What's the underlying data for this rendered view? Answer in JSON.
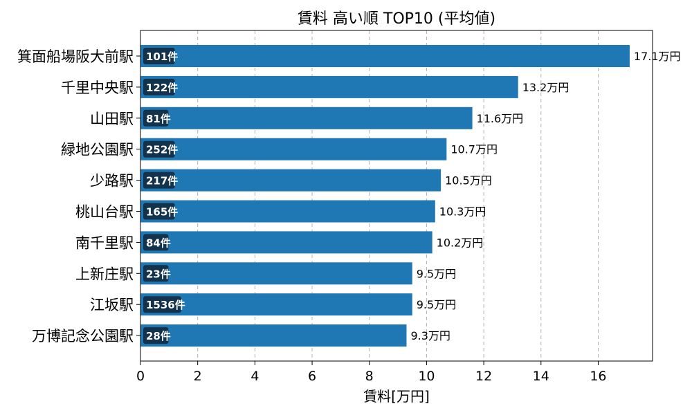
{
  "chart_data": {
    "type": "bar",
    "orientation": "horizontal",
    "title": "賃料 高い順 TOP10 (平均値)",
    "xlabel": "賃料[万円]",
    "ylabel": "",
    "xlim": [
      0,
      17.9
    ],
    "xticks": [
      "0",
      "2",
      "4",
      "6",
      "8",
      "10",
      "12",
      "14",
      "16"
    ],
    "grid": "x-dashed",
    "bar_color": "#1f77b4",
    "badge_color": "#13334d",
    "categories": [
      "箕面船場阪大前駅",
      "千里中央駅",
      "山田駅",
      "緑地公園駅",
      "少路駅",
      "桃山台駅",
      "南千里駅",
      "上新庄駅",
      "江坂駅",
      "万博記念公園駅"
    ],
    "values": [
      17.1,
      13.2,
      11.6,
      10.7,
      10.5,
      10.3,
      10.2,
      9.5,
      9.5,
      9.3
    ],
    "value_labels": [
      "17.1万円",
      "13.2万円",
      "11.6万円",
      "10.7万円",
      "10.5万円",
      "10.3万円",
      "10.2万円",
      "9.5万円",
      "9.5万円",
      "9.3万円"
    ],
    "counts": [
      "101件",
      "122件",
      "81件",
      "252件",
      "217件",
      "165件",
      "84件",
      "23件",
      "1536件",
      "28件"
    ]
  }
}
